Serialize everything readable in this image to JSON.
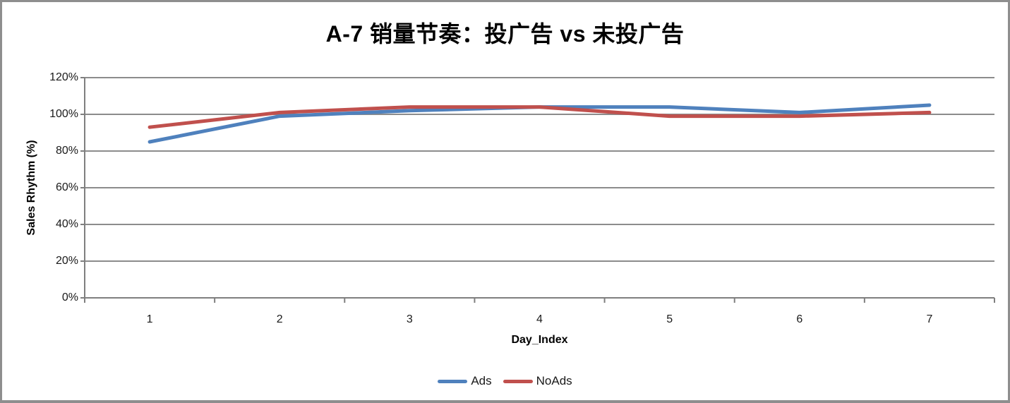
{
  "chart_data": {
    "type": "line",
    "title": "A-7 销量节奏：投广告 vs 未投广告",
    "xlabel": "Day_Index",
    "ylabel": "Sales Rhythm (%)",
    "categories": [
      "1",
      "2",
      "3",
      "4",
      "5",
      "6",
      "7"
    ],
    "series": [
      {
        "name": "Ads",
        "color": "#4F81BD",
        "values": [
          85,
          99,
          102,
          104,
          104,
          101,
          105
        ]
      },
      {
        "name": "NoAds",
        "color": "#C0504D",
        "values": [
          93,
          101,
          104,
          104,
          99,
          99,
          101
        ]
      }
    ],
    "unit": "%",
    "ylim": [
      0,
      120
    ],
    "yticks": [
      {
        "value": 0,
        "label": "0%"
      },
      {
        "value": 20,
        "label": "20%"
      },
      {
        "value": 40,
        "label": "40%"
      },
      {
        "value": 60,
        "label": "60%"
      },
      {
        "value": 80,
        "label": "80%"
      },
      {
        "value": 100,
        "label": "100%"
      },
      {
        "value": 120,
        "label": "120%"
      }
    ],
    "grid": true,
    "legend_position": "bottom"
  },
  "frame": {
    "background": "#FFFFFF",
    "border_color": "#8E8E8E",
    "grid_color": "#8C8C8C",
    "axis_color": "#7F7F7F",
    "text_color": "#000000"
  }
}
